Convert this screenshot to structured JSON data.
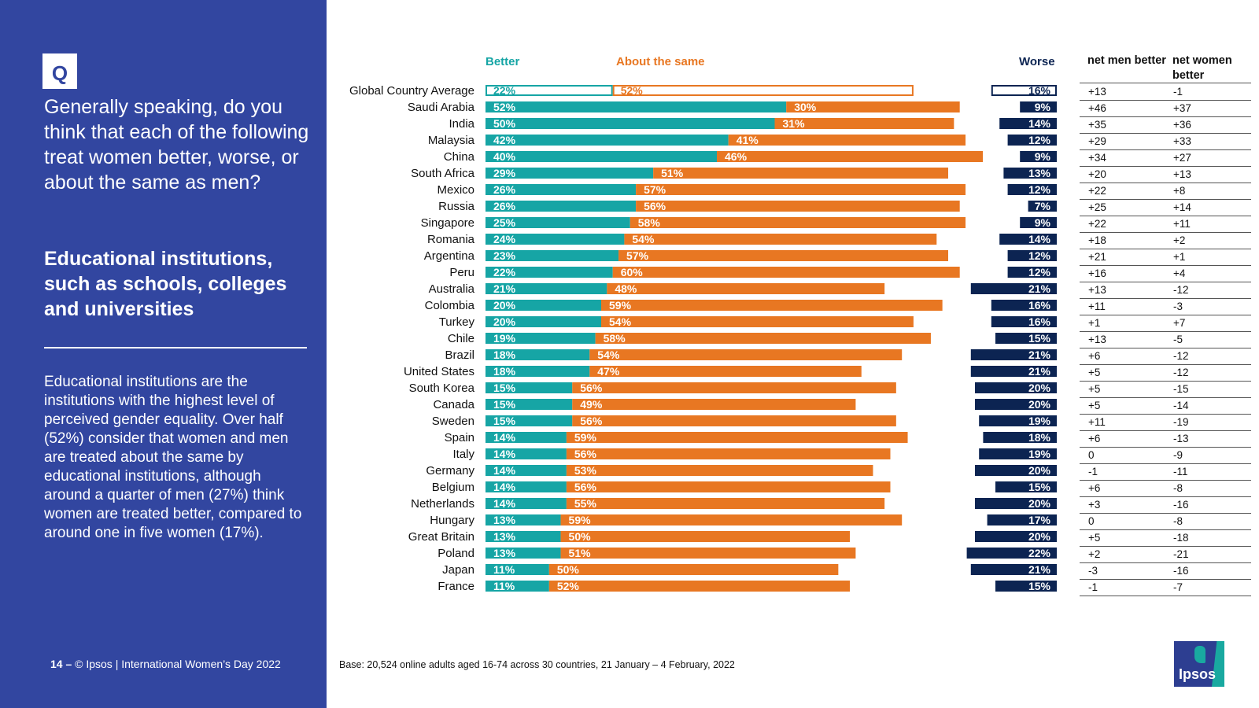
{
  "question_badge": "Q",
  "question": "Generally speaking, do you think that each of the following treat women better, worse, or about the same as men?",
  "subject": "Educational institutions, such as schools, colleges and universities",
  "summary": "Educational institutions are the institutions with the highest level of perceived gender equality. Over half (52%) consider that women and men are treated about the same by educational institutions, although around a quarter of men (27%) think women are treated better, compared to around one in five women (17%).",
  "footer": {
    "page": "14 –",
    "text": "© Ipsos | International Women’s Day 2022"
  },
  "base_note": "Base: 20,524 online adults aged 16-74 across 30 countries, 21 January – 4 February, 2022",
  "logo_text": "Ipsos",
  "table_headers": {
    "men": "net men better",
    "women": "net women better"
  },
  "colors": {
    "better": "#16a5a5",
    "same": "#e87722",
    "worse": "#0c2452",
    "sidebar": "#3246a0"
  },
  "chart_data": {
    "type": "bar",
    "orientation": "horizontal-stacked",
    "legend": [
      "Better",
      "About the same",
      "Worse"
    ],
    "categories": [
      "Global Country Average",
      "Saudi Arabia",
      "India",
      "Malaysia",
      "China",
      "South Africa",
      "Mexico",
      "Russia",
      "Singapore",
      "Romania",
      "Argentina",
      "Peru",
      "Australia",
      "Colombia",
      "Turkey",
      "Chile",
      "Brazil",
      "United States",
      "South Korea",
      "Canada",
      "Sweden",
      "Spain",
      "Italy",
      "Germany",
      "Belgium",
      "Netherlands",
      "Hungary",
      "Great Britain",
      "Poland",
      "Japan",
      "France"
    ],
    "series": [
      {
        "name": "Better",
        "values": [
          22,
          52,
          50,
          42,
          40,
          29,
          26,
          26,
          25,
          24,
          23,
          22,
          21,
          20,
          20,
          19,
          18,
          18,
          15,
          15,
          15,
          14,
          14,
          14,
          14,
          14,
          13,
          13,
          13,
          11,
          11
        ]
      },
      {
        "name": "About the same",
        "values": [
          52,
          30,
          31,
          41,
          46,
          51,
          57,
          56,
          58,
          54,
          57,
          60,
          48,
          59,
          54,
          58,
          54,
          47,
          56,
          49,
          56,
          59,
          56,
          53,
          56,
          55,
          59,
          50,
          51,
          50,
          52
        ]
      },
      {
        "name": "Worse",
        "values": [
          16,
          9,
          14,
          12,
          9,
          13,
          12,
          7,
          9,
          14,
          12,
          12,
          21,
          16,
          16,
          15,
          21,
          21,
          20,
          20,
          19,
          18,
          19,
          20,
          15,
          20,
          17,
          20,
          22,
          21,
          15
        ]
      }
    ],
    "net_men_better": [
      "+13",
      "+46",
      "+35",
      "+29",
      "+34",
      "+20",
      "+22",
      "+25",
      "+22",
      "+18",
      "+21",
      "+16",
      "+13",
      "+11",
      "+1",
      "+13",
      "+6",
      "+5",
      "+5",
      "+5",
      "+11",
      "+6",
      "0",
      "-1",
      "+6",
      "+3",
      "0",
      "+5",
      "+2",
      "-3",
      "-1"
    ],
    "net_women_better": [
      "-1",
      "+37",
      "+36",
      "+33",
      "+27",
      "+13",
      "+8",
      "+14",
      "+11",
      "+2",
      "+1",
      "+4",
      "-12",
      "-3",
      "+7",
      "-5",
      "-12",
      "-12",
      "-15",
      "-14",
      "-19",
      "-13",
      "-9",
      "-11",
      "-8",
      "-16",
      "-8",
      "-18",
      "-21",
      "-16",
      "-7"
    ],
    "value_suffix": "%"
  }
}
